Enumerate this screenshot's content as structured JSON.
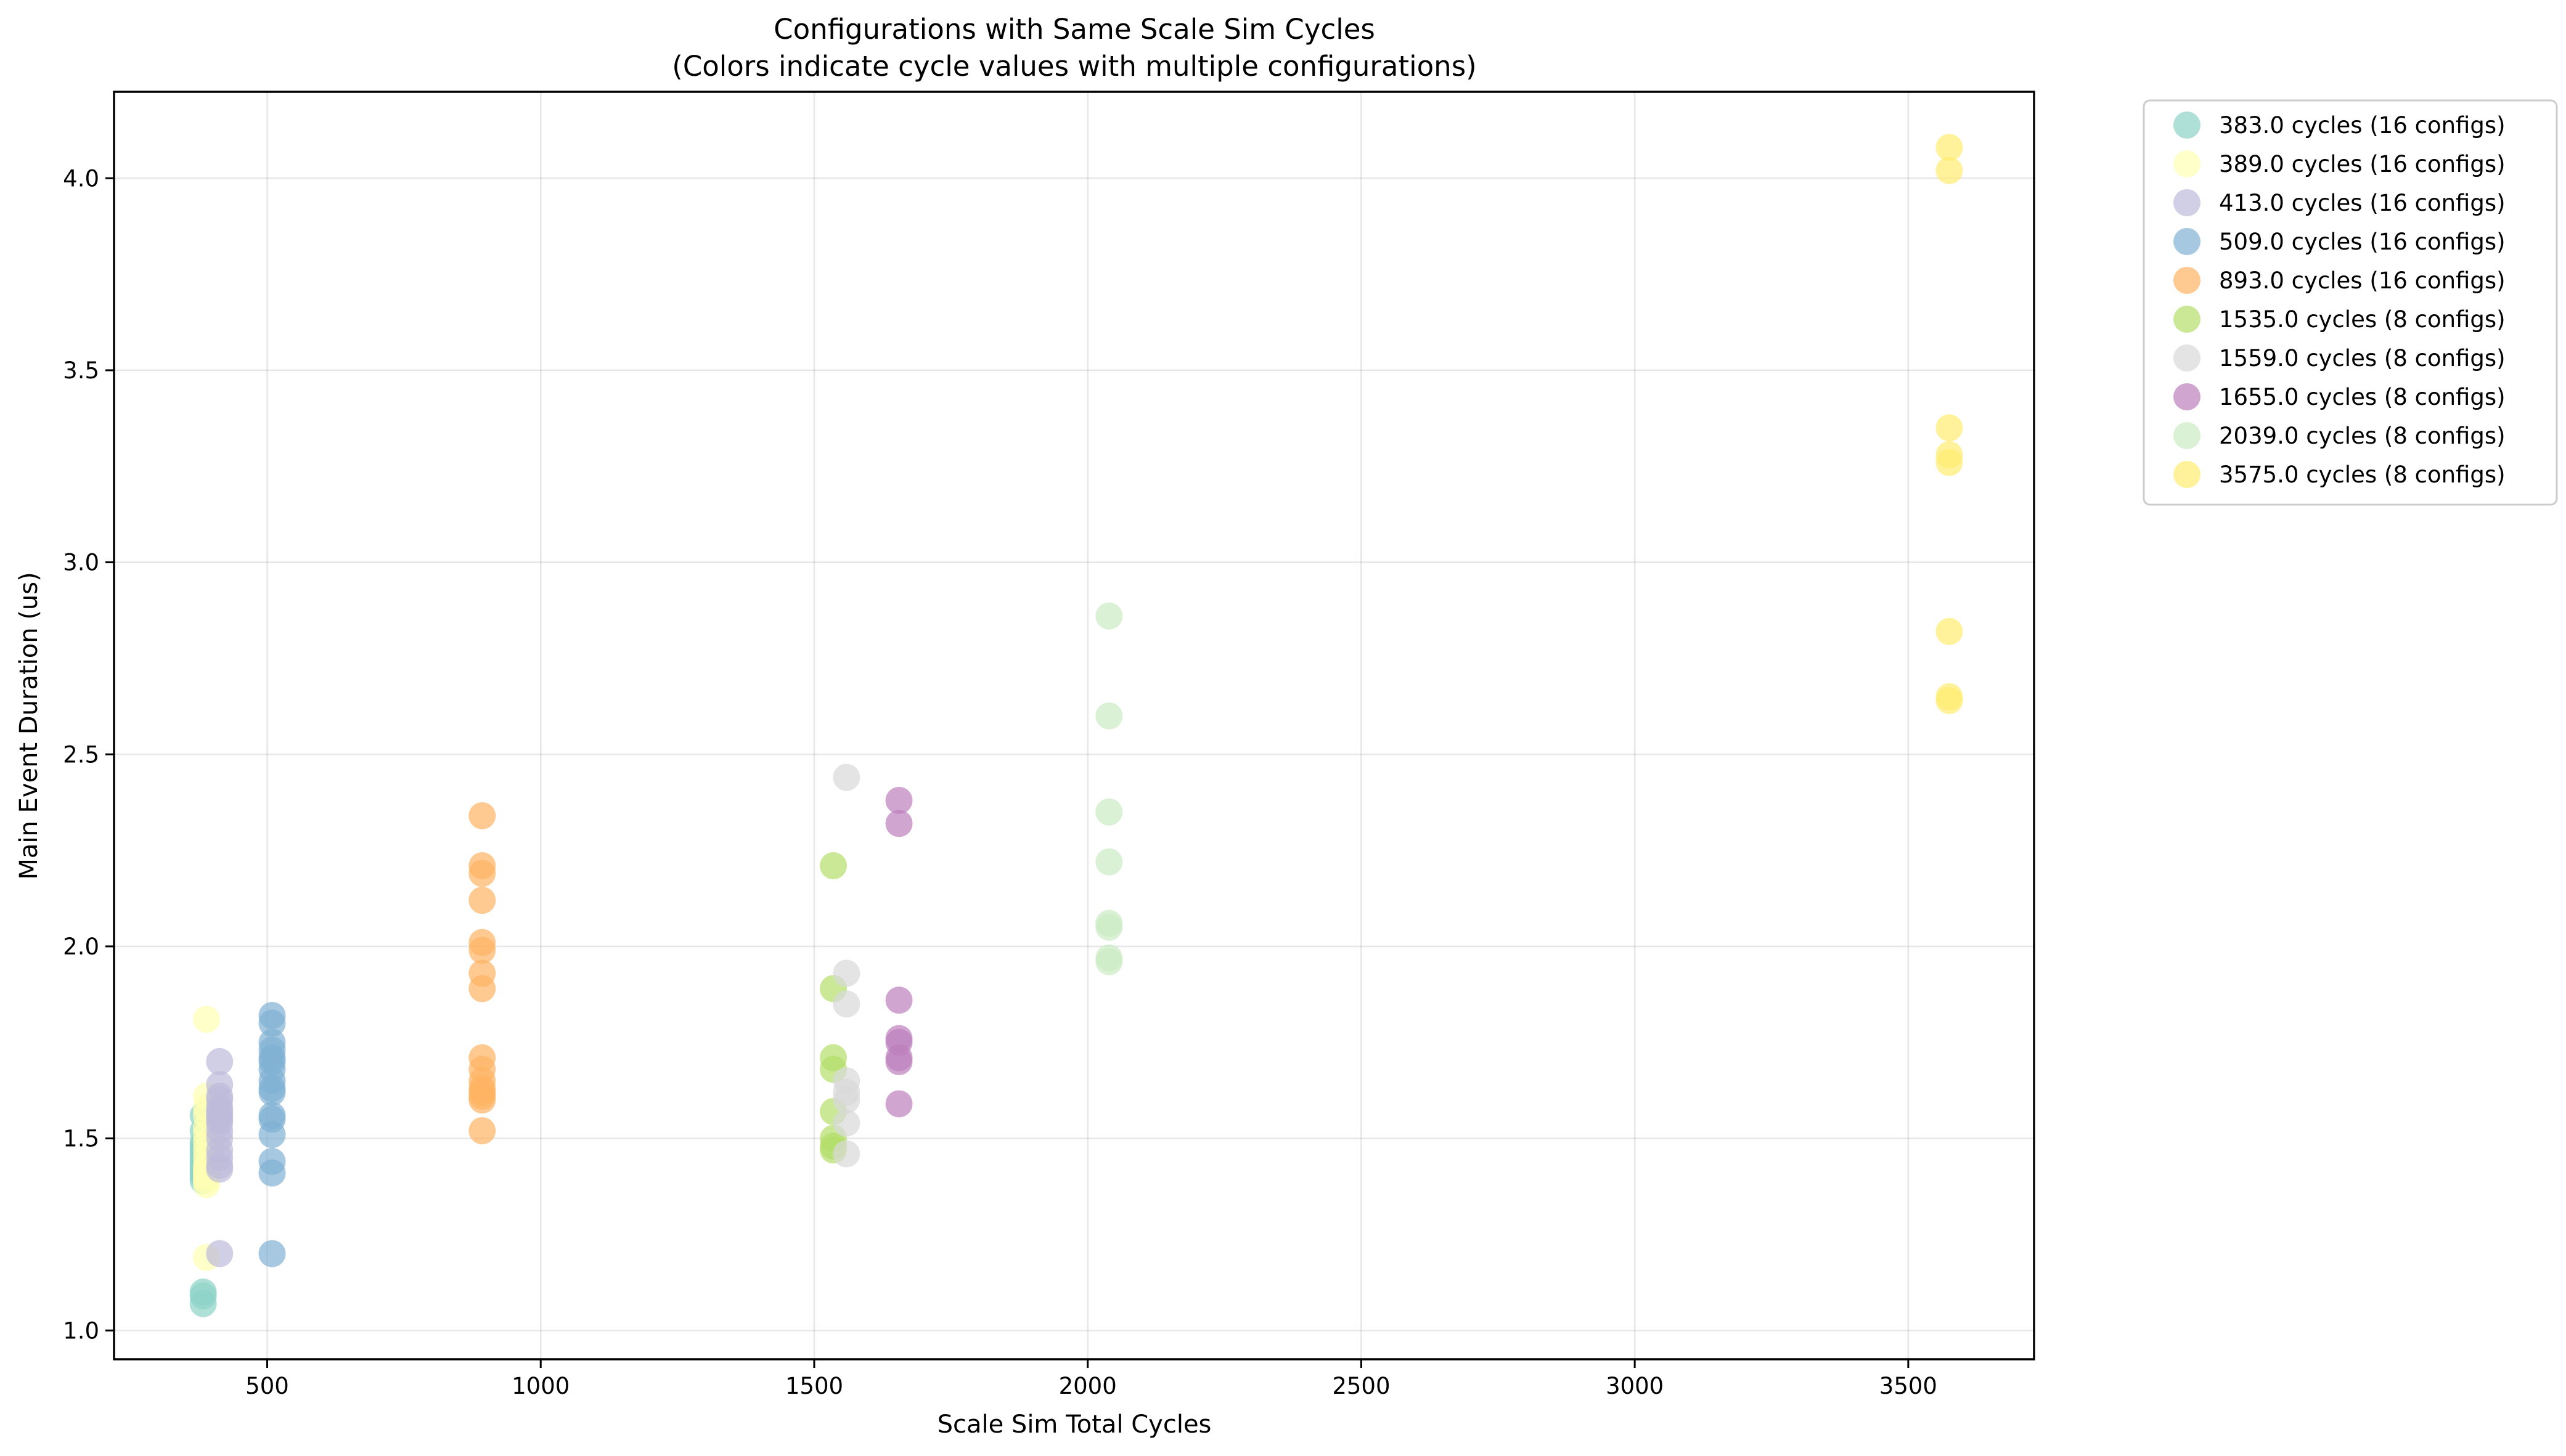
{
  "chart_data": {
    "type": "scatter",
    "title": "Configurations with Same Scale Sim Cycles",
    "subtitle": "(Colors indicate cycle values with multiple configurations)",
    "xlabel": "Scale Sim Total Cycles",
    "ylabel": "Main Event Duration (us)",
    "xlim": [
      220,
      3730
    ],
    "ylim": [
      0.925,
      4.225
    ],
    "xticks": [
      500,
      1000,
      1500,
      2000,
      2500,
      3000,
      3500
    ],
    "xtick_labels": [
      "500",
      "1000",
      "1500",
      "2000",
      "2500",
      "3000",
      "3500"
    ],
    "yticks": [
      1.0,
      1.5,
      2.0,
      2.5,
      3.0,
      3.5,
      4.0
    ],
    "ytick_labels": [
      "1.0",
      "1.5",
      "2.0",
      "2.5",
      "3.0",
      "3.5",
      "4.0"
    ],
    "grid": true,
    "legend_position": "outside-top-right",
    "marker_alpha": 0.7,
    "series": [
      {
        "name": "383.0 cycles (16 configs)",
        "color": "#8dd3c7",
        "x": 383,
        "y": [
          1.56,
          1.52,
          1.49,
          1.48,
          1.47,
          1.46,
          1.45,
          1.44,
          1.43,
          1.42,
          1.41,
          1.4,
          1.39,
          1.1,
          1.09,
          1.07
        ]
      },
      {
        "name": "389.0 cycles (16 configs)",
        "color": "#ffffb3",
        "x": 389,
        "y": [
          1.81,
          1.61,
          1.58,
          1.56,
          1.53,
          1.51,
          1.49,
          1.47,
          1.45,
          1.43,
          1.42,
          1.41,
          1.4,
          1.39,
          1.38,
          1.19
        ]
      },
      {
        "name": "413.0 cycles (16 configs)",
        "color": "#bebada",
        "x": 413,
        "y": [
          1.7,
          1.64,
          1.61,
          1.6,
          1.58,
          1.57,
          1.56,
          1.55,
          1.54,
          1.52,
          1.5,
          1.47,
          1.45,
          1.43,
          1.42,
          1.2
        ]
      },
      {
        "name": "509.0 cycles (16 configs)",
        "color": "#80b1d3",
        "x": 509,
        "y": [
          1.82,
          1.8,
          1.75,
          1.73,
          1.71,
          1.7,
          1.68,
          1.65,
          1.63,
          1.62,
          1.56,
          1.55,
          1.51,
          1.44,
          1.41,
          1.2
        ]
      },
      {
        "name": "893.0 cycles (16 configs)",
        "color": "#fdb462",
        "x": 893,
        "y": [
          2.34,
          2.21,
          2.19,
          2.12,
          2.01,
          1.99,
          1.93,
          1.89,
          1.71,
          1.68,
          1.65,
          1.63,
          1.62,
          1.61,
          1.6,
          1.52
        ]
      },
      {
        "name": "1535.0 cycles (8 configs)",
        "color": "#b3de69",
        "x": 1535,
        "y": [
          2.21,
          1.89,
          1.71,
          1.68,
          1.57,
          1.5,
          1.48,
          1.47
        ]
      },
      {
        "name": "1559.0 cycles (8 configs)",
        "color": "#d9d9d9",
        "x": 1559,
        "y": [
          2.44,
          1.93,
          1.85,
          1.65,
          1.62,
          1.6,
          1.54,
          1.46
        ]
      },
      {
        "name": "1655.0 cycles (8 configs)",
        "color": "#bc80bd",
        "x": 1655,
        "y": [
          2.38,
          2.32,
          1.86,
          1.76,
          1.75,
          1.71,
          1.7,
          1.59
        ]
      },
      {
        "name": "2039.0 cycles (8 configs)",
        "color": "#ccebc5",
        "x": 2039,
        "y": [
          2.86,
          2.6,
          2.35,
          2.22,
          2.06,
          2.05,
          1.97,
          1.96
        ]
      },
      {
        "name": "3575.0 cycles (8 configs)",
        "color": "#ffed6f",
        "x": 3575,
        "y": [
          4.08,
          4.02,
          3.35,
          3.28,
          3.26,
          2.82,
          2.65,
          2.64
        ]
      }
    ]
  }
}
